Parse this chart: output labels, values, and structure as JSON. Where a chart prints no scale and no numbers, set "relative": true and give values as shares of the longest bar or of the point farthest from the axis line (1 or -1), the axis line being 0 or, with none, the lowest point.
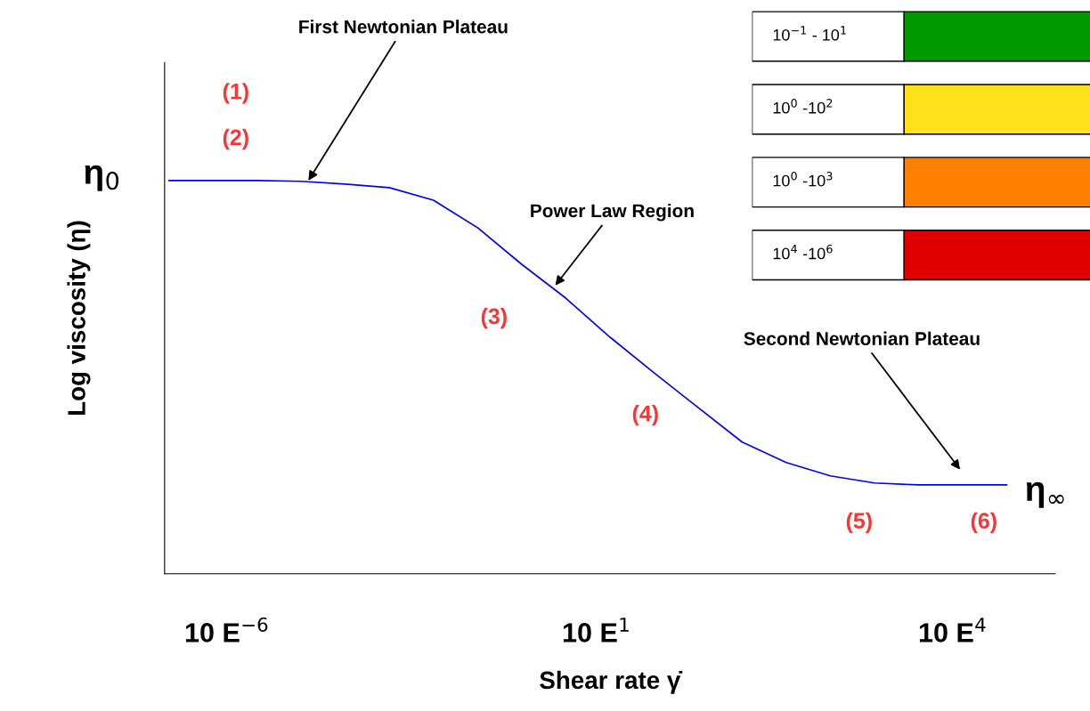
{
  "chart_data": [
    {
      "type": "line",
      "relative": true,
      "xlabel": "Shear rate γ̇",
      "ylabel": "Log viscosity (η)",
      "categories": [
        null,
        null,
        null,
        null,
        null,
        null,
        null,
        null,
        null,
        null,
        null,
        null,
        null,
        null,
        null,
        null,
        null,
        null,
        null,
        null
      ],
      "grid": false,
      "legend": false,
      "marker": "none",
      "line_style": "solid",
      "series": [
        {
          "color": "#0000ff",
          "values": [
            1,
            1,
            1,
            0.998,
            0.991,
            0.982,
            0.95,
            0.88,
            0.787,
            0.701,
            0.602,
            0.511,
            0.423,
            0.335,
            0.283,
            0.249,
            0.231,
            0.226,
            0.226,
            0.226
          ]
        }
      ],
      "annotations": [
        "First Newtonian Plateau",
        "Power Law Region",
        "Second Newtonian Plateau",
        "(1)",
        "(2)",
        "(3)",
        "(4)",
        "(5)",
        "(6)",
        "η$_{0}$",
        "η$_{∞}$",
        "10 E$^{−6}$",
        "10 E$^{1}$",
        "10 E$^{4}$"
      ]
    },
    {
      "type": "other",
      "annotations": [
        "10$^{−1}$ - 10$^{1}$",
        "10$^{0}$ -10$^{2}$",
        "10$^{0}$ -10$^{3}$",
        "10$^{4}$ -10$^{6}$"
      ],
      "colors": [
        "#009900",
        "#ffe119",
        "#ff8000",
        "#e00000"
      ]
    }
  ]
}
